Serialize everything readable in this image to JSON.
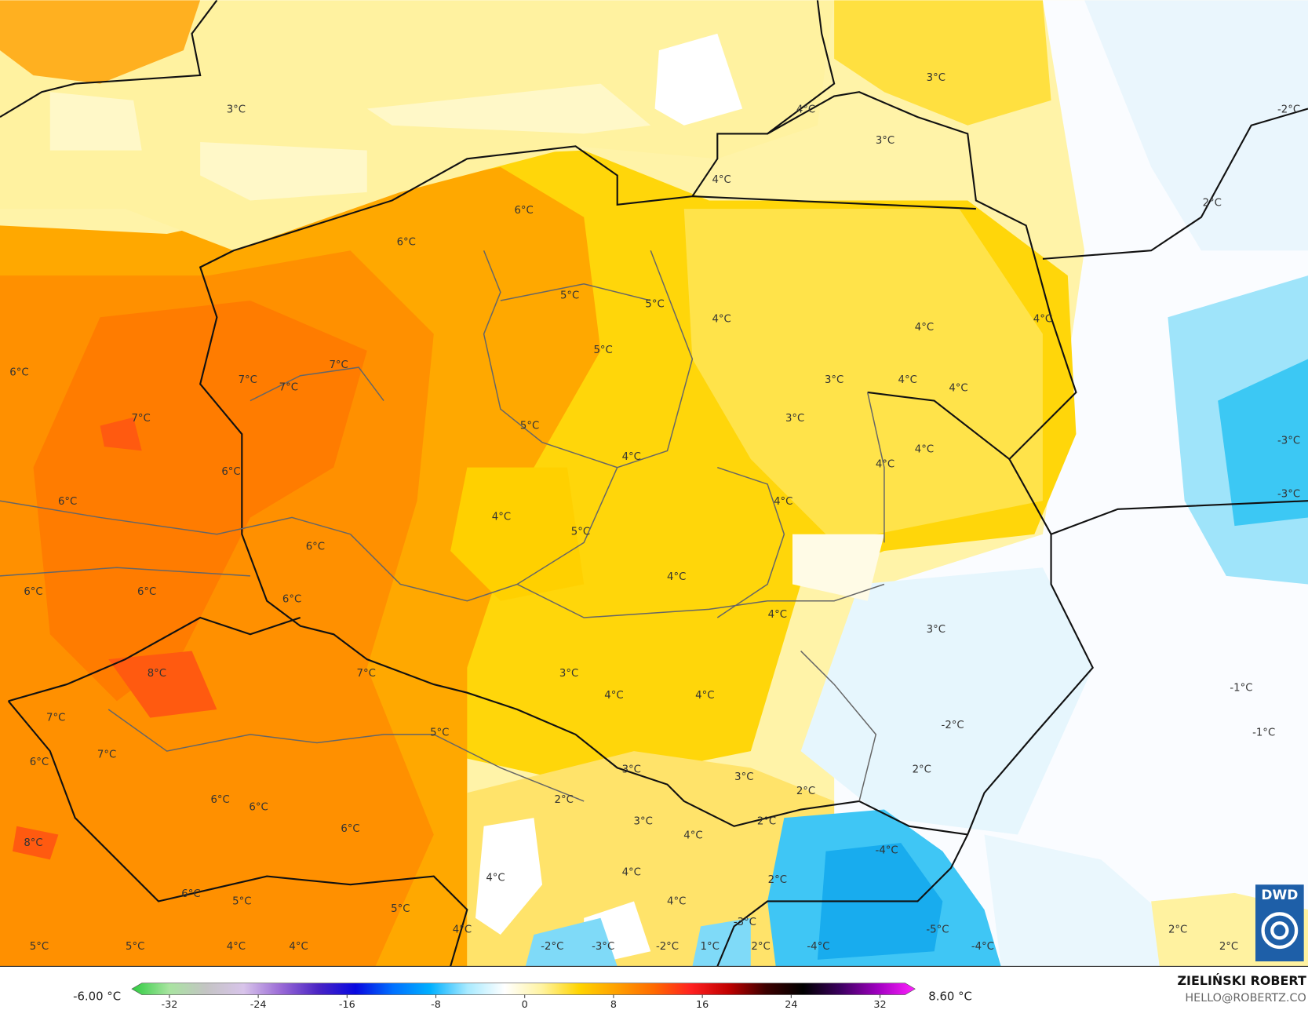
{
  "map": {
    "labels": [
      "3°C",
      "3°C",
      "4°C",
      "3°C",
      "4°C",
      "-2°C",
      "2°C",
      "6°C",
      "6°C",
      "5°C",
      "5°C",
      "4°C",
      "4°C",
      "4°C",
      "5°C",
      "6°C",
      "7°C",
      "7°C",
      "7°C",
      "3°C",
      "4°C",
      "4°C",
      "7°C",
      "3°C",
      "5°C",
      "4°C",
      "-3°C",
      "4°C",
      "4°C",
      "6°C",
      "6°C",
      "4°C",
      "-3°C",
      "4°C",
      "5°C",
      "6°C",
      "4°C",
      "6°C",
      "6°C",
      "6°C",
      "4°C",
      "3°C",
      "8°C",
      "7°C",
      "3°C",
      "4°C",
      "4°C",
      "-1°C",
      "7°C",
      "-2°C",
      "5°C",
      "-1°C",
      "7°C",
      "6°C",
      "3°C",
      "3°C",
      "2°C",
      "2°C",
      "2°C",
      "6°C",
      "6°C",
      "3°C",
      "2°C",
      "6°C",
      "4°C",
      "8°C",
      "-4°C",
      "4°C",
      "4°C",
      "2°C",
      "6°C",
      "5°C",
      "4°C",
      "5°C",
      "-3°C",
      "-5°C",
      "4°C",
      "2°C",
      "5°C",
      "5°C",
      "4°C",
      "4°C",
      "-2°C",
      "-3°C",
      "-2°C",
      "1°C",
      "2°C",
      "-4°C",
      "-4°C",
      "2°C"
    ],
    "logo": "DWD"
  },
  "colorbar": {
    "min_label": "-6.00 °C",
    "max_label": "8.60 °C",
    "ticks": [
      -32,
      -24,
      -16,
      -8,
      0,
      8,
      16,
      24,
      32
    ],
    "colors": [
      "#2ecc40",
      "#a8e4a0",
      "#c4c4c4",
      "#d8c4ea",
      "#9a6ad6",
      "#4a24c4",
      "#0808e0",
      "#0070ff",
      "#00b0ff",
      "#a8eaff",
      "#ffffff",
      "#fff3a0",
      "#ffd400",
      "#ffa000",
      "#ff6a00",
      "#ff2020",
      "#c00000",
      "#3c0000",
      "#000000",
      "#3c0060",
      "#a000c0",
      "#ff20ff"
    ]
  },
  "credit": {
    "name": "ZIELIŃSKI ROBERT",
    "email": "HELLO@ROBERTZ.CO"
  }
}
